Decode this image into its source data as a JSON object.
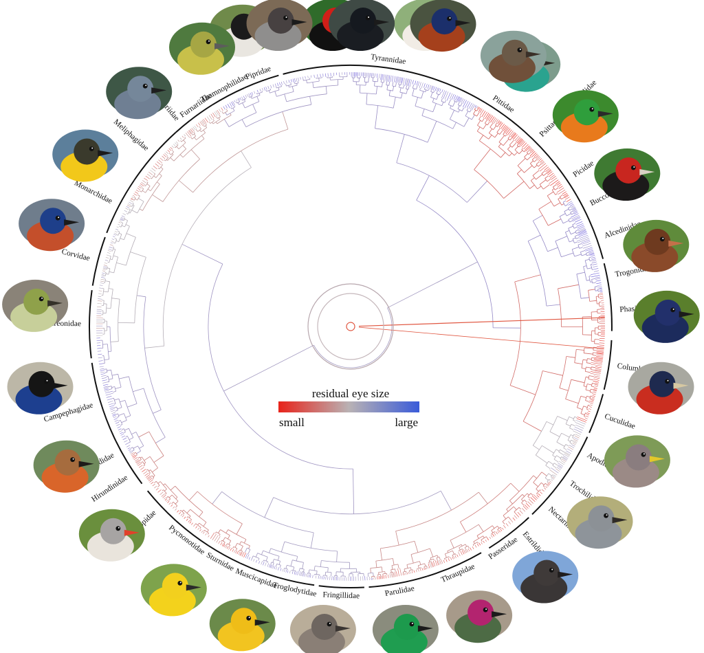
{
  "legend": {
    "title": "residual eye size",
    "low_label": "small",
    "high_label": "large",
    "colors": [
      "#e8231a",
      "#b9b2b4",
      "#3a5bd9"
    ]
  },
  "families": [
    {
      "name": "Tyrannidae",
      "a0": 345,
      "a1": 31,
      "bird": "flycatcher-portrait",
      "colors": {
        "bg": "#8fb07a",
        "body": "#f1ece5",
        "head": "#8b6a55",
        "beak": "#3a2f2a"
      }
    },
    {
      "name": "Pittidae",
      "a0": 31,
      "a1": 38,
      "bird": "pitta-portrait",
      "colors": {
        "bg": "#7d9c8c",
        "body": "#2aa38f",
        "head": "#1e1a16",
        "beak": "#2b2520"
      }
    },
    {
      "name": "Psittacidae/Psittaculidae",
      "a0": 38,
      "a1": 52,
      "bird": "macaw-portrait",
      "colors": {
        "bg": "#3c8a2d",
        "body": "#e87a1c",
        "head": "#2f9e3c",
        "beak": "#2a2a2a"
      }
    },
    {
      "name": "Picidae",
      "a0": 52,
      "a1": 60,
      "bird": "woodpecker-portrait",
      "colors": {
        "bg": "#3f7a32",
        "body": "#1c1a1a",
        "head": "#c8261f",
        "beak": "#d9d2c4"
      }
    },
    {
      "name": "Bucconidae",
      "a0": 60,
      "a1": 66,
      "bird": "jacamar-portrait",
      "colors": {
        "bg": "#5f8b3b",
        "body": "#8a4a2a",
        "head": "#6e3a1f",
        "beak": "#c4704a"
      }
    },
    {
      "name": "Alcedinidae",
      "a0": 66,
      "a1": 75,
      "bird": "kingfisher-portrait",
      "colors": {
        "bg": "#5a7f2c",
        "body": "#1c2b5c",
        "head": "#22306b",
        "beak": "#1b1b1b"
      }
    },
    {
      "name": "Trogonidae",
      "a0": 76,
      "a1": 82,
      "bird": "trogon-portrait",
      "colors": {
        "bg": "#a8a8a0",
        "body": "#c92d1f",
        "head": "#1e2a4f",
        "beak": "#d6c8a2"
      }
    },
    {
      "name": "Phasianidae",
      "a0": 82,
      "a1": 91,
      "bird": "phasianid-portrait",
      "colors": {
        "bg": "#c9c5b5",
        "body": "#d63a22",
        "head": "#1d2440",
        "beak": "#9a8b6a"
      }
    },
    {
      "name": "Columbidae",
      "a0": 93,
      "a1": 104,
      "bird": "pigeon-portrait",
      "colors": {
        "bg": "#7e9b57",
        "body": "#9b8a86",
        "head": "#8a7d7f",
        "beak": "#e2c82b"
      }
    },
    {
      "name": "Cuculidae",
      "a0": 105,
      "a1": 114,
      "bird": "cuckoo-portrait",
      "colors": {
        "bg": "#b3ae7a",
        "body": "#8e949a",
        "head": "#8c9196",
        "beak": "#2f2b26"
      }
    },
    {
      "name": "Apodidae",
      "a0": 115,
      "a1": 122,
      "bird": "swift-portrait",
      "colors": {
        "bg": "#7fa6d8",
        "body": "#3a3636",
        "head": "#3f3a39",
        "beak": "#201d1d"
      }
    },
    {
      "name": "Trochilidae",
      "a0": 122,
      "a1": 129,
      "bird": "hummingbird-portrait",
      "colors": {
        "bg": "#a79a8a",
        "body": "#4d6b45",
        "head": "#b3246f",
        "beak": "#1b1b1b"
      }
    },
    {
      "name": "Nectariniidae",
      "a0": 129,
      "a1": 136,
      "bird": "sunbird-portrait",
      "colors": {
        "bg": "#8a8c7d",
        "body": "#1f9d50",
        "head": "#1d9a4d",
        "beak": "#1b1b1b"
      }
    },
    {
      "name": "Estrildidae",
      "a0": 137,
      "a1": 143,
      "bird": "estrildid-portrait",
      "colors": {
        "bg": "#b9ad99",
        "body": "#8a7f76",
        "head": "#6e6660",
        "beak": "#3a3532"
      }
    },
    {
      "name": "Passeridae",
      "a0": 143,
      "a1": 148,
      "bird": "sparrow-portrait",
      "colors": {
        "bg": "#c4bda8",
        "body": "#8f8780",
        "head": "#7d756f",
        "beak": "#2e2a27"
      }
    },
    {
      "name": "Thraupidae",
      "a0": 150,
      "a1": 163,
      "bird": "tanager-portrait",
      "colors": {
        "bg": "#6b8a4a",
        "body": "#f2c420",
        "head": "#efbd18",
        "beak": "#1e1e1e"
      }
    },
    {
      "name": "Parulidae",
      "a0": 163,
      "a1": 176,
      "bird": "warbler-portrait",
      "colors": {
        "bg": "#7ea34c",
        "body": "#f3d21c",
        "head": "#f2d01e",
        "beak": "#2a2a2a"
      }
    },
    {
      "name": "Fringillidae",
      "a0": 177,
      "a1": 187,
      "bird": "finch-portrait",
      "colors": {
        "bg": "#6a8f3d",
        "body": "#e9e4dc",
        "head": "#a7a4a3",
        "beak": "#e2402a"
      }
    },
    {
      "name": "Troglodytidae",
      "a0": 188,
      "a1": 196,
      "bird": "wren-portrait",
      "colors": {
        "bg": "#4f6e3a",
        "body": "#d4602a",
        "head": "#9c6238",
        "beak": "#2b2420"
      }
    },
    {
      "name": "Muscicapidae",
      "a0": 196,
      "a1": 205,
      "bird": "robin-portrait",
      "colors": {
        "bg": "#6f8a5c",
        "body": "#d9652a",
        "head": "#a66c3e",
        "beak": "#1e1b19"
      }
    },
    {
      "name": "Sturnidae",
      "a0": 205,
      "a1": 213,
      "bird": "starling-portrait",
      "colors": {
        "bg": "#bcb7a7",
        "body": "#1d3f8f",
        "head": "#151515",
        "beak": "#151515"
      }
    },
    {
      "name": "Pycnonotidae",
      "a0": 213,
      "a1": 222,
      "bird": "bulbul-portrait",
      "colors": {
        "bg": "#8a8378",
        "body": "#c7cf9a",
        "head": "#8fa14a",
        "beak": "#343028"
      }
    },
    {
      "name": "Zosteropidae",
      "a0": 222,
      "a1": 231,
      "bird": "white-eye-portrait",
      "colors": {
        "bg": "#6f7d8c",
        "body": "#c44f2b",
        "head": "#1e3f8a",
        "beak": "#1b1b1b"
      }
    },
    {
      "name": "Hirundinidae",
      "a0": 233,
      "a1": 239,
      "bird": "swallow-portrait",
      "colors": {
        "bg": "#5c7f9b",
        "body": "#f2c81a",
        "head": "#3a3a2c",
        "beak": "#1b1b1b"
      }
    },
    {
      "name": "Alaudidae",
      "a0": 239,
      "a1": 244,
      "bird": "lark-portrait",
      "colors": {
        "bg": "#7e9a77",
        "body": "#d8c98a",
        "head": "#d3b33a",
        "beak": "#2a2a2a"
      }
    },
    {
      "name": "Campephagidae",
      "a0": 244,
      "a1": 262,
      "bird": "cuckooshrike-portrait",
      "colors": {
        "bg": "#3e5746",
        "body": "#6f7f93",
        "head": "#75879a",
        "beak": "#1e1e1e"
      }
    },
    {
      "name": "Vireonidae",
      "a0": 263,
      "a1": 278,
      "bird": "vireo-portrait",
      "colors": {
        "bg": "#4f7a3f",
        "body": "#c8c04a",
        "head": "#a6a644",
        "beak": "#5c5c5c"
      }
    },
    {
      "name": "Corvidae",
      "a0": 279,
      "a1": 290,
      "bird": "corvid-portrait",
      "colors": {
        "bg": "#7c6a56",
        "body": "#8f8e8d",
        "head": "#474141",
        "beak": "#1b1b1b"
      }
    },
    {
      "name": "Monarchidae",
      "a0": 291,
      "a1": 304,
      "bird": "monarch-portrait",
      "colors": {
        "bg": "#3f4a45",
        "body": "#1a1d22",
        "head": "#15191f",
        "beak": "#1b1b1b"
      }
    },
    {
      "name": "Meliphagidae",
      "a0": 304,
      "a1": 318,
      "bird": "honeyeater-portrait",
      "colors": {
        "bg": "#4a5340",
        "body": "#a5401c",
        "head": "#1b2f6b",
        "beak": "#1b1b1b"
      }
    },
    {
      "name": "Grallariidae",
      "a0": 318,
      "a1": 322,
      "bird": "antpitta-portrait",
      "colors": {
        "bg": "#8aa29b",
        "body": "#70503a",
        "head": "#6b5a48",
        "beak": "#3a3028"
      }
    },
    {
      "name": "Furnariidae",
      "a0": 322,
      "a1": 328,
      "bird": "ovenbird-portrait",
      "colors": {
        "bg": "#6b7f52",
        "body": "#e5e2dc",
        "head": "#2a2a2a",
        "beak": "#2a2a2a"
      }
    },
    {
      "name": "Thamnophilidae",
      "a0": 328,
      "a1": 336,
      "bird": "antbird-portrait",
      "colors": {
        "bg": "#2f6b2a",
        "body": "#111111",
        "head": "#d01f18",
        "beak": "#c4b89a"
      }
    },
    {
      "name": "Pipridae",
      "a0": 336,
      "a1": 344,
      "bird": "manakin-portrait",
      "colors": {
        "bg": "#2f6b2a",
        "body": "#111111",
        "head": "#d01f18",
        "beak": "#c4b89a"
      }
    }
  ],
  "thumbnails": [
    {
      "bird": "antbird-portrait",
      "angle": 340,
      "colors": {
        "bg": "#6f8a4a",
        "body": "#e9e6e0",
        "head": "#1b1b1b",
        "beak": "#2a2a2a"
      }
    },
    {
      "bird": "manakin-portrait",
      "angle": 357,
      "colors": {
        "bg": "#2f6b2a",
        "body": "#111111",
        "head": "#d01f18",
        "beak": "#c4b89a"
      }
    },
    {
      "bird": "flycatcher-portrait",
      "angle": 14,
      "colors": {
        "bg": "#8fb07a",
        "body": "#f1ece5",
        "head": "#8b6a55",
        "beak": "#3a2f2a"
      }
    },
    {
      "bird": "pitta-portrait",
      "angle": 34,
      "colors": {
        "bg": "#7d9c8c",
        "body": "#2aa38f",
        "head": "#1e1a16",
        "beak": "#2b2520"
      }
    },
    {
      "bird": "macaw-portrait",
      "angle": 48,
      "colors": {
        "bg": "#3c8a2d",
        "body": "#e87a1c",
        "head": "#2f9e3c",
        "beak": "#2a2a2a"
      }
    },
    {
      "bird": "woodpecker-portrait",
      "angle": 61,
      "colors": {
        "bg": "#3f7a32",
        "body": "#1c1a1a",
        "head": "#c8261f",
        "beak": "#d9d2c4"
      }
    },
    {
      "bird": "jacamar-portrait",
      "angle": 75,
      "colors": {
        "bg": "#5f8b3b",
        "body": "#8a4a2a",
        "head": "#6e3a1f",
        "beak": "#c4704a"
      }
    },
    {
      "bird": "kingfisher-portrait",
      "angle": 88,
      "colors": {
        "bg": "#5a7f2c",
        "body": "#1c2b5c",
        "head": "#22306b",
        "beak": "#1b1b1b"
      }
    },
    {
      "bird": "trogon-portrait",
      "angle": 101,
      "colors": {
        "bg": "#a8a8a0",
        "body": "#c92d1f",
        "head": "#1e2a4f",
        "beak": "#d6c8a2"
      }
    },
    {
      "bird": "pigeon-portrait",
      "angle": 115,
      "colors": {
        "bg": "#7e9b57",
        "body": "#9b8a86",
        "head": "#8a7d7f",
        "beak": "#e2c82b"
      }
    },
    {
      "bird": "cuckoo-portrait",
      "angle": 128,
      "colors": {
        "bg": "#b3ae7a",
        "body": "#8e949a",
        "head": "#8c9196",
        "beak": "#2f2b26"
      }
    },
    {
      "bird": "swift-portrait",
      "angle": 142,
      "colors": {
        "bg": "#7fa6d8",
        "body": "#3a3636",
        "head": "#3f3a39",
        "beak": "#201d1d"
      }
    },
    {
      "bird": "hummingbird-portrait",
      "angle": 156,
      "colors": {
        "bg": "#a79a8a",
        "body": "#4d6b45",
        "head": "#b3246f",
        "beak": "#1b1b1b"
      }
    },
    {
      "bird": "sunbird-portrait",
      "angle": 170,
      "colors": {
        "bg": "#8a8c7d",
        "body": "#1f9d50",
        "head": "#1d9a4d",
        "beak": "#1b1b1b"
      }
    },
    {
      "bird": "estrildid-portrait",
      "angle": 185,
      "colors": {
        "bg": "#b9ad99",
        "body": "#8a7f76",
        "head": "#6e6660",
        "beak": "#3a3532"
      }
    },
    {
      "bird": "tanager-portrait",
      "angle": 200,
      "colors": {
        "bg": "#6b8a4a",
        "body": "#f2c420",
        "head": "#efbd18",
        "beak": "#1e1e1e"
      }
    },
    {
      "bird": "warbler-portrait",
      "angle": 214,
      "colors": {
        "bg": "#7ea34c",
        "body": "#f3d21c",
        "head": "#f2d01e",
        "beak": "#2a2a2a"
      }
    },
    {
      "bird": "finch-portrait",
      "angle": 229,
      "colors": {
        "bg": "#6a8f3d",
        "body": "#e9e4dc",
        "head": "#a7a4a3",
        "beak": "#e2402a"
      }
    },
    {
      "bird": "robin-portrait",
      "angle": 244,
      "colors": {
        "bg": "#6f8a5c",
        "body": "#d9652a",
        "head": "#a66c3e",
        "beak": "#1e1b19"
      }
    },
    {
      "bird": "starling-portrait",
      "angle": 259,
      "colors": {
        "bg": "#bcb7a7",
        "body": "#1d3f8f",
        "head": "#151515",
        "beak": "#151515"
      }
    },
    {
      "bird": "white-eye-portrait",
      "angle": 274,
      "colors": {
        "bg": "#8a8378",
        "body": "#c7cf9a",
        "head": "#8fa14a",
        "beak": "#343028"
      }
    },
    {
      "bird": "swallow-portrait",
      "angle": 289,
      "colors": {
        "bg": "#6f7d8c",
        "body": "#c44f2b",
        "head": "#1e3f8a",
        "beak": "#1b1b1b"
      }
    },
    {
      "bird": "lark-portrait",
      "angle": 303,
      "colors": {
        "bg": "#5c7f9b",
        "body": "#f2c81a",
        "head": "#3a3a2c",
        "beak": "#1b1b1b"
      }
    },
    {
      "bird": "cuckooshrike-portrait",
      "angle": 318,
      "colors": {
        "bg": "#3e5746",
        "body": "#6f7f93",
        "head": "#75879a",
        "beak": "#1e1e1e"
      }
    },
    {
      "bird": "vireo-portrait",
      "angle": 332,
      "colors": {
        "bg": "#4f7a3f",
        "body": "#c8c04a",
        "head": "#a6a644",
        "beak": "#5c5c5c"
      }
    },
    {
      "bird": "corvid-portrait",
      "angle": 347,
      "colors": {
        "bg": "#7c6a56",
        "body": "#8f8e8d",
        "head": "#474141",
        "beak": "#1b1b1b"
      }
    },
    {
      "bird": "monarch-portrait",
      "angle": 2,
      "colors": {
        "bg": "#3f4a45",
        "body": "#1a1d22",
        "head": "#15191f",
        "beak": "#1b1b1b"
      }
    },
    {
      "bird": "honeyeater-portrait",
      "angle": 17,
      "colors": {
        "bg": "#4a5340",
        "body": "#a5401c",
        "head": "#1b2f6b",
        "beak": "#1b1b1b"
      }
    },
    {
      "bird": "antpitta-portrait",
      "angle": 31,
      "colors": {
        "bg": "#8aa29b",
        "body": "#70503a",
        "head": "#6b5a48",
        "beak": "#3a3028"
      }
    }
  ]
}
